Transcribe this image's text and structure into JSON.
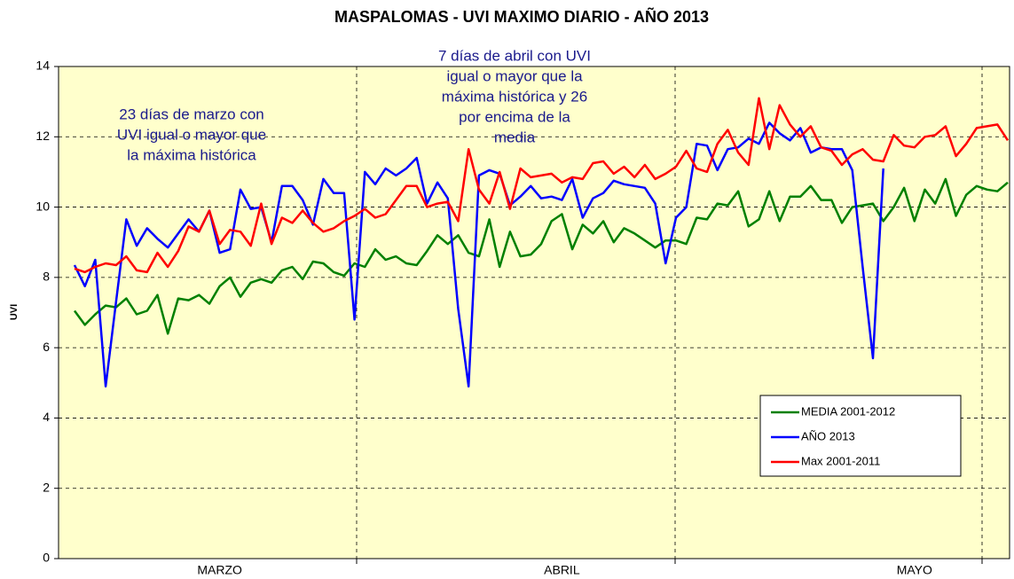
{
  "chart_data": {
    "type": "line",
    "title": "MASPALOMAS - UVI MAXIMO DIARIO - AÑO 2013",
    "y_label": "UVI",
    "ylim": [
      0,
      14
    ],
    "yticks": [
      0,
      2,
      4,
      6,
      8,
      10,
      12,
      14
    ],
    "grid": true,
    "legend": "lower right",
    "background": "#ffffcc",
    "categories": [
      null,
      null,
      null,
      null,
      null,
      null,
      null,
      null,
      null,
      null,
      null,
      null,
      null,
      null,
      "MARZO",
      null,
      null,
      null,
      null,
      null,
      null,
      null,
      null,
      null,
      null,
      null,
      null,
      null,
      null,
      null,
      null,
      null,
      null,
      null,
      null,
      null,
      null,
      null,
      null,
      null,
      null,
      null,
      null,
      null,
      null,
      null,
      null,
      "ABRIL",
      null,
      null,
      null,
      null,
      null,
      null,
      null,
      null,
      null,
      null,
      null,
      null,
      null,
      null,
      null,
      null,
      null,
      null,
      null,
      null,
      null,
      null,
      null,
      null,
      null,
      null,
      null,
      null,
      null,
      null,
      null,
      null,
      null,
      "MAYO",
      null,
      null,
      null,
      null,
      null,
      null,
      null,
      null,
      null
    ],
    "series": [
      {
        "name": "MEDIA 2001-2012",
        "color": "#008000",
        "values": [
          7.05,
          6.65,
          6.95,
          7.2,
          7.15,
          7.4,
          6.95,
          7.05,
          7.5,
          6.4,
          7.4,
          7.35,
          7.5,
          7.25,
          7.75,
          8.0,
          7.45,
          7.85,
          7.95,
          7.85,
          8.2,
          8.3,
          7.95,
          8.45,
          8.4,
          8.15,
          8.05,
          8.4,
          8.3,
          8.8,
          8.5,
          8.6,
          8.4,
          8.35,
          8.75,
          9.2,
          8.95,
          9.2,
          8.7,
          8.6,
          9.65,
          8.3,
          9.3,
          8.6,
          8.65,
          8.95,
          9.6,
          9.8,
          8.8,
          9.5,
          9.25,
          9.6,
          9.0,
          9.4,
          9.25,
          9.05,
          8.85,
          9.05,
          9.05,
          8.95,
          9.7,
          9.65,
          10.1,
          10.05,
          10.45,
          9.45,
          9.65,
          10.45,
          9.6,
          10.3,
          10.3,
          10.6,
          10.2,
          10.2,
          9.55,
          10.0,
          10.05,
          10.1,
          9.6,
          10.0,
          10.55,
          9.6,
          10.5,
          10.1,
          10.8,
          9.75,
          10.35,
          10.6,
          10.5,
          10.45,
          10.7
        ]
      },
      {
        "name": "AÑO 2013",
        "color": "#0000ff",
        "values": [
          8.35,
          7.75,
          8.5,
          4.9,
          7.3,
          9.65,
          8.9,
          9.4,
          9.1,
          8.85,
          9.25,
          9.65,
          9.3,
          9.9,
          8.7,
          8.8,
          10.5,
          9.95,
          10.0,
          9.0,
          10.6,
          10.6,
          10.2,
          9.5,
          10.8,
          10.4,
          10.4,
          6.8,
          11.0,
          10.65,
          11.1,
          10.9,
          11.1,
          11.4,
          10.1,
          10.7,
          10.25,
          7.1,
          4.9,
          10.9,
          11.05,
          10.95,
          10.05,
          10.3,
          10.6,
          10.25,
          10.3,
          10.2,
          10.8,
          9.7,
          10.25,
          10.4,
          10.75,
          10.65,
          10.6,
          10.55,
          10.1,
          8.4,
          9.7,
          10.0,
          11.8,
          11.75,
          11.05,
          11.65,
          11.7,
          11.95,
          11.8,
          12.4,
          12.1,
          11.9,
          12.25,
          11.55,
          11.7,
          11.65,
          11.65,
          11.05,
          8.3,
          5.7,
          11.1,
          null,
          null,
          null,
          null,
          null,
          null,
          null,
          null,
          null,
          null,
          null,
          null
        ]
      },
      {
        "name": "Max 2001-2011",
        "color": "#ff0000",
        "values": [
          8.25,
          8.15,
          8.3,
          8.4,
          8.35,
          8.6,
          8.2,
          8.15,
          8.7,
          8.3,
          8.75,
          9.45,
          9.3,
          9.9,
          8.95,
          9.35,
          9.3,
          8.9,
          10.1,
          8.95,
          9.7,
          9.55,
          9.9,
          9.55,
          9.3,
          9.4,
          9.6,
          9.75,
          9.95,
          9.7,
          9.8,
          10.2,
          10.6,
          10.6,
          10.0,
          10.1,
          10.15,
          9.6,
          11.65,
          10.5,
          10.1,
          11.0,
          9.95,
          11.1,
          10.85,
          10.9,
          10.95,
          10.7,
          10.85,
          10.8,
          11.25,
          11.3,
          10.95,
          11.15,
          10.85,
          11.2,
          10.8,
          10.95,
          11.15,
          11.6,
          11.1,
          11.0,
          11.8,
          12.2,
          11.55,
          11.2,
          13.1,
          11.65,
          12.9,
          12.35,
          12.0,
          12.3,
          11.7,
          11.6,
          11.2,
          11.5,
          11.65,
          11.35,
          11.3,
          12.05,
          11.75,
          11.7,
          12.0,
          12.05,
          12.3,
          11.45,
          11.8,
          12.25,
          12.3,
          12.35,
          11.9
        ]
      }
    ],
    "annotations": [
      {
        "lines": [
          "23 días de marzo con",
          "UVI igual o mayor que",
          "la máxima histórica"
        ]
      },
      {
        "lines": [
          "7 días de abril con UVI",
          "igual o mayor que la",
          "máxima histórica y 26",
          "por encima de la",
          "media"
        ]
      }
    ]
  }
}
